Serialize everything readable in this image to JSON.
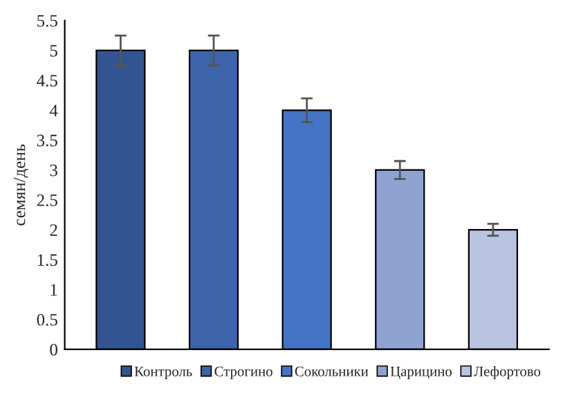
{
  "chart_data": {
    "type": "bar",
    "ylabel": "семян/день",
    "categories": [
      null,
      null,
      null,
      null,
      null
    ],
    "series": [
      {
        "name": "Контроль",
        "color": "#325592",
        "values": [
          5,
          null,
          null,
          null,
          null
        ],
        "errors": [
          0.25,
          null,
          null,
          null,
          null
        ]
      },
      {
        "name": "Строгино",
        "color": "#3d63ab",
        "values": [
          null,
          5,
          null,
          null,
          null
        ],
        "errors": [
          null,
          0.25,
          null,
          null,
          null
        ]
      },
      {
        "name": "Сокольники",
        "color": "#4573c5",
        "values": [
          null,
          null,
          4,
          null,
          null
        ],
        "errors": [
          null,
          null,
          0.2,
          null,
          null
        ]
      },
      {
        "name": "Царицино",
        "color": "#8fa3d3",
        "values": [
          null,
          null,
          null,
          3,
          null
        ],
        "errors": [
          null,
          null,
          null,
          0.15,
          null
        ]
      },
      {
        "name": "Лефортово",
        "color": "#b9c4e2",
        "values": [
          null,
          null,
          null,
          null,
          2
        ],
        "errors": [
          null,
          null,
          null,
          null,
          0.1
        ]
      }
    ],
    "ylim": [
      0,
      5.5
    ],
    "yticks": [
      0,
      0.5,
      1,
      1.5,
      2,
      2.5,
      3,
      3.5,
      4,
      4.5,
      5,
      5.5
    ],
    "tick_labels": "y",
    "grid": false,
    "legend": "bottom"
  }
}
